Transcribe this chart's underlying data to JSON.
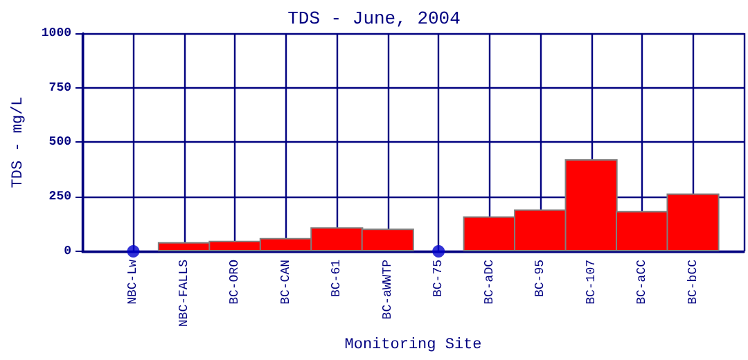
{
  "chart_data": {
    "type": "bar",
    "title": "TDS - June, 2004",
    "xlabel": "Monitoring Site",
    "ylabel": "TDS - mg/L",
    "categories": [
      "NBC-Lw",
      "NBC-FALLS",
      "BC-ORO",
      "BC-CAN",
      "BC-61",
      "BC-aWWTP",
      "BC-75",
      "BC-aDC",
      "BC-95",
      "BC-107",
      "BC-aCC",
      "BC-bCC"
    ],
    "series": [
      {
        "color": "#ff0000",
        "values": [
          null,
          42,
          48,
          61,
          110,
          104,
          null,
          160,
          192,
          422,
          185,
          265
        ]
      },
      {
        "type": "scatter",
        "color": "#0000cc",
        "values": [
          0,
          null,
          null,
          null,
          null,
          null,
          0,
          null,
          null,
          null,
          null,
          null
        ]
      }
    ],
    "ylim": [
      0,
      1000
    ],
    "yticks": [
      0,
      250,
      500,
      750,
      1000
    ],
    "grid": true
  }
}
